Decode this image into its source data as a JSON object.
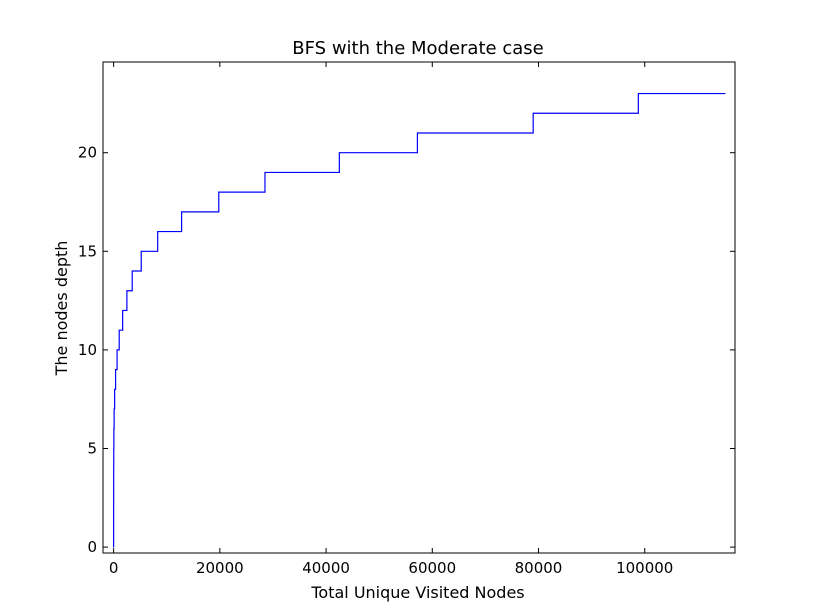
{
  "chart_data": {
    "type": "line",
    "line_style": "step",
    "title": "BFS with the Moderate case",
    "xlabel": "Total Unique Visited Nodes",
    "ylabel": "The nodes depth",
    "xlim": [
      -2000,
      117000
    ],
    "ylim": [
      -0.3,
      24.6
    ],
    "xticks": [
      0,
      20000,
      40000,
      60000,
      80000,
      100000
    ],
    "xtick_labels": [
      "0",
      "20000",
      "40000",
      "60000",
      "80000",
      "100000"
    ],
    "yticks": [
      0,
      5,
      10,
      15,
      20
    ],
    "ytick_labels": [
      "0",
      "5",
      "10",
      "15",
      "20"
    ],
    "grid": false,
    "legend": "none",
    "series": [
      {
        "color": "#0000ff",
        "x": [
          0,
          1,
          3,
          6,
          12,
          24,
          48,
          96,
          190,
          370,
          650,
          1050,
          1700,
          2500,
          3500,
          5200,
          8300,
          12800,
          19800,
          28500,
          42500,
          57200,
          79000,
          98800,
          115200
        ],
        "y": [
          0,
          1,
          2,
          3,
          4,
          5,
          6,
          7,
          8,
          9,
          10,
          11,
          12,
          13,
          14,
          15,
          16,
          17,
          18,
          19,
          20,
          21,
          22,
          23,
          23
        ]
      }
    ]
  }
}
